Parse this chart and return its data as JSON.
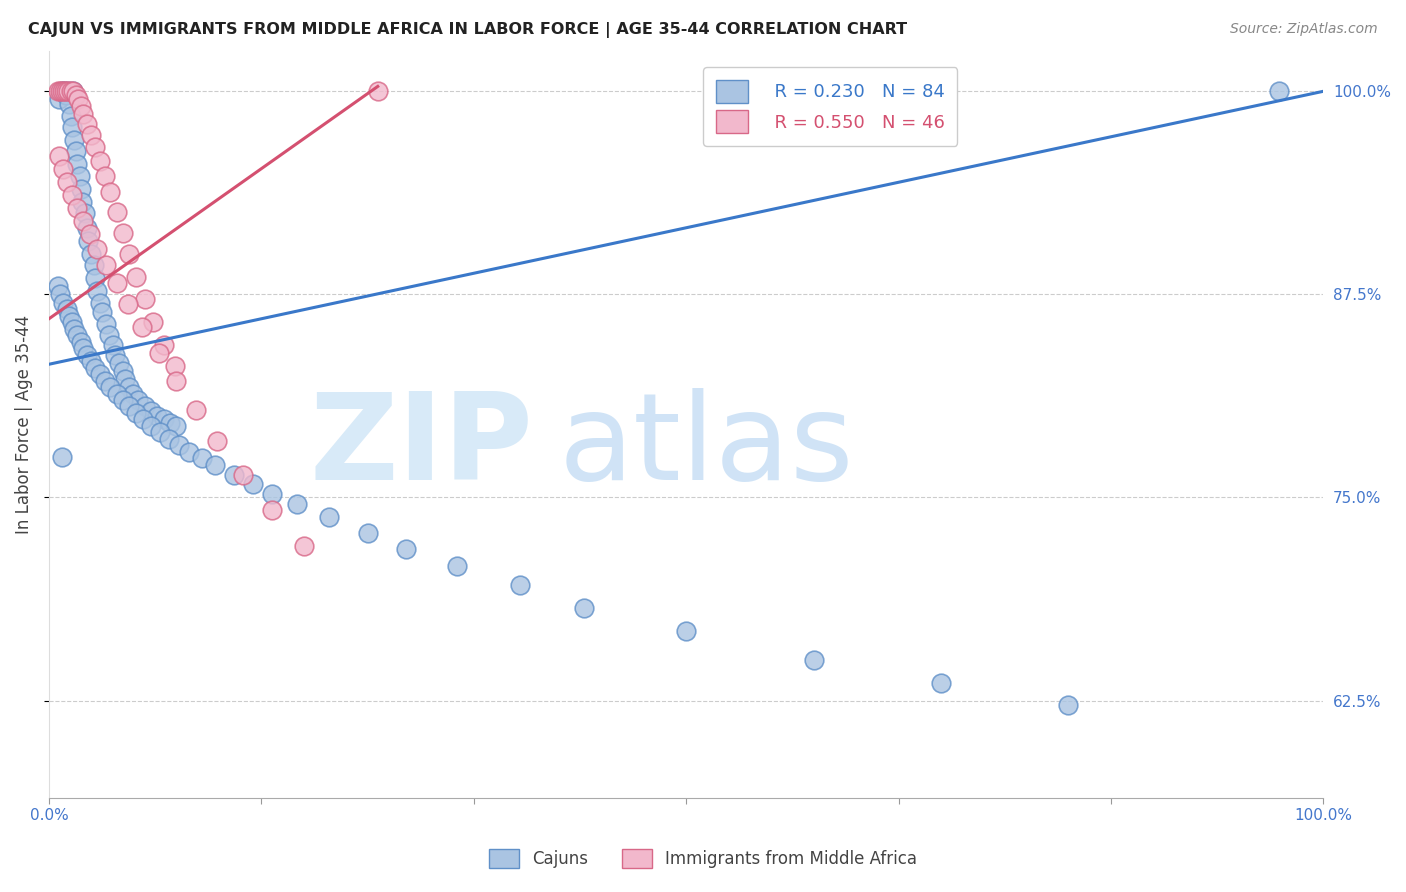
{
  "title": "CAJUN VS IMMIGRANTS FROM MIDDLE AFRICA IN LABOR FORCE | AGE 35-44 CORRELATION CHART",
  "source": "Source: ZipAtlas.com",
  "ylabel": "In Labor Force | Age 35-44",
  "legend_cajun_R": "R = 0.230",
  "legend_cajun_N": "N = 84",
  "legend_imm_R": "R = 0.550",
  "legend_imm_N": "N = 46",
  "yticks": [
    0.625,
    0.75,
    0.875,
    1.0
  ],
  "ytick_labels": [
    "62.5%",
    "75.0%",
    "87.5%",
    "100.0%"
  ],
  "xlim": [
    0.0,
    1.0
  ],
  "ylim": [
    0.565,
    1.025
  ],
  "cajun_color": "#aac4e2",
  "cajun_edge": "#6090c8",
  "imm_color": "#f2b8cc",
  "imm_edge": "#d86888",
  "line_cajun_color": "#3a78c9",
  "line_imm_color": "#d45070",
  "cajun_line_x0": 0.0,
  "cajun_line_y0": 0.832,
  "cajun_line_x1": 1.0,
  "cajun_line_y1": 1.0,
  "imm_line_x0": 0.0,
  "imm_line_y0": 0.86,
  "imm_line_x1": 0.258,
  "imm_line_y1": 1.003,
  "cajun_x": [
    0.008,
    0.01,
    0.012,
    0.013,
    0.015,
    0.016,
    0.017,
    0.018,
    0.019,
    0.02,
    0.021,
    0.022,
    0.024,
    0.025,
    0.026,
    0.028,
    0.03,
    0.031,
    0.033,
    0.035,
    0.036,
    0.038,
    0.04,
    0.042,
    0.045,
    0.047,
    0.05,
    0.052,
    0.055,
    0.058,
    0.06,
    0.063,
    0.066,
    0.07,
    0.075,
    0.08,
    0.085,
    0.09,
    0.095,
    0.1,
    0.007,
    0.009,
    0.011,
    0.014,
    0.016,
    0.018,
    0.02,
    0.022,
    0.025,
    0.027,
    0.03,
    0.033,
    0.036,
    0.04,
    0.044,
    0.048,
    0.053,
    0.058,
    0.063,
    0.068,
    0.074,
    0.08,
    0.087,
    0.094,
    0.102,
    0.11,
    0.12,
    0.13,
    0.145,
    0.16,
    0.175,
    0.195,
    0.22,
    0.25,
    0.28,
    0.32,
    0.37,
    0.42,
    0.5,
    0.6,
    0.7,
    0.8,
    0.965,
    0.01
  ],
  "cajun_y": [
    0.995,
    1.0,
    1.0,
    0.998,
    1.0,
    0.992,
    0.985,
    0.978,
    1.0,
    0.97,
    0.963,
    0.955,
    0.948,
    0.94,
    0.932,
    0.925,
    0.916,
    0.908,
    0.9,
    0.893,
    0.885,
    0.877,
    0.87,
    0.864,
    0.857,
    0.85,
    0.844,
    0.838,
    0.833,
    0.828,
    0.823,
    0.818,
    0.814,
    0.81,
    0.806,
    0.803,
    0.8,
    0.798,
    0.796,
    0.794,
    0.88,
    0.875,
    0.87,
    0.866,
    0.862,
    0.858,
    0.854,
    0.85,
    0.846,
    0.842,
    0.838,
    0.834,
    0.83,
    0.826,
    0.822,
    0.818,
    0.814,
    0.81,
    0.806,
    0.802,
    0.798,
    0.794,
    0.79,
    0.786,
    0.782,
    0.778,
    0.774,
    0.77,
    0.764,
    0.758,
    0.752,
    0.746,
    0.738,
    0.728,
    0.718,
    0.708,
    0.696,
    0.682,
    0.668,
    0.65,
    0.636,
    0.622,
    1.0,
    0.775
  ],
  "imm_x": [
    0.007,
    0.009,
    0.01,
    0.012,
    0.013,
    0.015,
    0.017,
    0.019,
    0.021,
    0.023,
    0.025,
    0.027,
    0.03,
    0.033,
    0.036,
    0.04,
    0.044,
    0.048,
    0.053,
    0.058,
    0.063,
    0.068,
    0.075,
    0.082,
    0.09,
    0.099,
    0.008,
    0.011,
    0.014,
    0.018,
    0.022,
    0.027,
    0.032,
    0.038,
    0.045,
    0.053,
    0.062,
    0.073,
    0.086,
    0.1,
    0.115,
    0.132,
    0.152,
    0.175,
    0.2,
    0.258
  ],
  "imm_y": [
    1.0,
    1.0,
    1.0,
    1.0,
    1.0,
    1.0,
    1.0,
    1.0,
    0.998,
    0.995,
    0.991,
    0.986,
    0.98,
    0.973,
    0.966,
    0.957,
    0.948,
    0.938,
    0.926,
    0.913,
    0.9,
    0.886,
    0.872,
    0.858,
    0.844,
    0.831,
    0.96,
    0.952,
    0.944,
    0.936,
    0.928,
    0.92,
    0.912,
    0.903,
    0.893,
    0.882,
    0.869,
    0.855,
    0.839,
    0.822,
    0.804,
    0.785,
    0.764,
    0.742,
    0.72,
    1.0
  ]
}
